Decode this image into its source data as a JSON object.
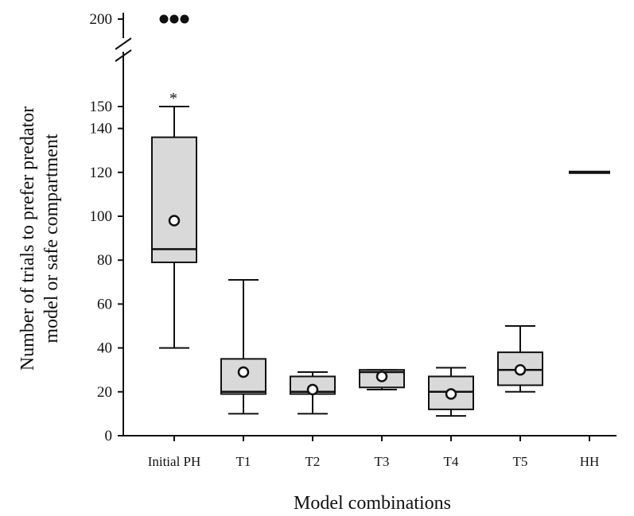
{
  "chart_data": {
    "type": "box",
    "title": "",
    "xlabel": "Model combinations",
    "ylabel_line1": "Number of trials to prefer predator",
    "ylabel_line2": "model or safe compartment",
    "ylim": [
      0,
      155
    ],
    "yticks": [
      0,
      20,
      40,
      60,
      80,
      100,
      120,
      140,
      150
    ],
    "axis_break": true,
    "upper_segment_tick": 200,
    "grid": false,
    "legend": "none",
    "categories": [
      "Initial PH",
      "T1",
      "T2",
      "T3",
      "T4",
      "T5",
      "HH"
    ],
    "boxes": [
      {
        "category": "Initial PH",
        "whisker_low": 40,
        "q1": 79,
        "median": 85,
        "q3": 136,
        "whisker_high": 150,
        "mean": 98,
        "annotation": "*",
        "outliers_above_break": [
          200,
          200,
          200
        ]
      },
      {
        "category": "T1",
        "whisker_low": 10,
        "q1": 19,
        "median": 20,
        "q3": 35,
        "whisker_high": 71,
        "mean": 29
      },
      {
        "category": "T2",
        "whisker_low": 10,
        "q1": 19,
        "median": 20,
        "q3": 27,
        "whisker_high": 29,
        "mean": 21
      },
      {
        "category": "T3",
        "whisker_low": 21,
        "q1": 22,
        "median": 29,
        "q3": 30,
        "whisker_high": 30,
        "mean": 27
      },
      {
        "category": "T4",
        "whisker_low": 9,
        "q1": 12,
        "median": 20,
        "q3": 27,
        "whisker_high": 31,
        "mean": 19
      },
      {
        "category": "T5",
        "whisker_low": 20,
        "q1": 23,
        "median": 30,
        "q3": 38,
        "whisker_high": 50,
        "mean": 30
      },
      {
        "category": "HH",
        "whisker_low": 120,
        "q1": 120,
        "median": 120,
        "q3": 120,
        "whisker_high": 120,
        "mean": null
      }
    ]
  }
}
